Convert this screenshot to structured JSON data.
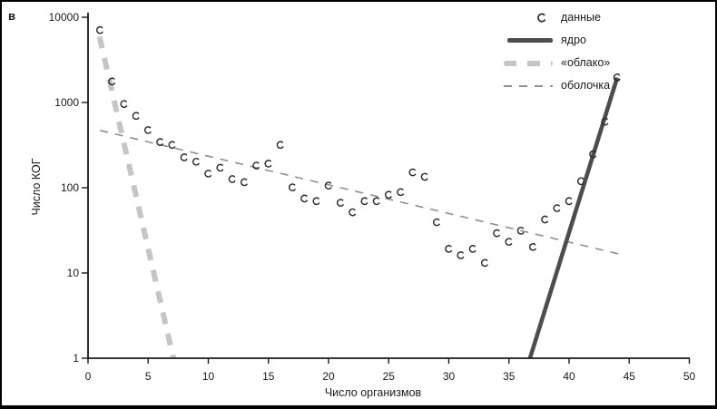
{
  "panel_label": "в",
  "colors": {
    "marker": "#2b2b2b",
    "core": "#4d4d4d",
    "cloud": "#c5c5c5",
    "shell": "#8f8f8f",
    "axis": "#1a1a1a",
    "text": "#1a1a1a",
    "frame": "#000000"
  },
  "legend": {
    "position": "top-right",
    "items": [
      {
        "key": "data",
        "label": "данные",
        "sample": "hooked-c-marker"
      },
      {
        "key": "core",
        "label": "ядро",
        "sample": "thick-solid-line"
      },
      {
        "key": "cloud",
        "label": "«облако»",
        "sample": "thick-dashed-line"
      },
      {
        "key": "shell",
        "label": "оболочка",
        "sample": "thin-dashed-line"
      }
    ]
  },
  "chart_data": {
    "type": "scatter",
    "title": "",
    "xlabel": "Число организмов",
    "ylabel": "Число КОГ",
    "grid": false,
    "x_axis": {
      "scale": "linear",
      "min": 0,
      "max": 50,
      "ticks": [
        0,
        5,
        10,
        15,
        20,
        25,
        30,
        35,
        40,
        45,
        50
      ]
    },
    "y_axis": {
      "scale": "log",
      "min": 1,
      "max": 10000,
      "ticks": [
        1,
        10,
        100,
        1000,
        10000
      ]
    },
    "series": [
      {
        "name": "данные",
        "key": "data",
        "type": "scatter",
        "marker": "hooked-c",
        "color": "#2b2b2b",
        "points": [
          [
            1,
            7000
          ],
          [
            2,
            1750
          ],
          [
            3,
            950
          ],
          [
            4,
            690
          ],
          [
            5,
            470
          ],
          [
            6,
            340
          ],
          [
            7,
            315
          ],
          [
            8,
            225
          ],
          [
            9,
            200
          ],
          [
            10,
            145
          ],
          [
            11,
            170
          ],
          [
            12,
            125
          ],
          [
            13,
            115
          ],
          [
            14,
            180
          ],
          [
            15,
            190
          ],
          [
            16,
            315
          ],
          [
            17,
            100
          ],
          [
            18,
            74
          ],
          [
            19,
            69
          ],
          [
            20,
            105
          ],
          [
            21,
            66
          ],
          [
            22,
            51
          ],
          [
            23,
            69
          ],
          [
            24,
            69
          ],
          [
            25,
            82
          ],
          [
            26,
            88
          ],
          [
            27,
            150
          ],
          [
            28,
            133
          ],
          [
            29,
            39
          ],
          [
            30,
            19
          ],
          [
            31,
            16
          ],
          [
            32,
            19
          ],
          [
            33,
            13
          ],
          [
            34,
            29
          ],
          [
            35,
            23
          ],
          [
            36,
            31
          ],
          [
            37,
            20
          ],
          [
            38,
            42
          ],
          [
            39,
            57
          ],
          [
            40,
            69
          ],
          [
            41,
            118
          ],
          [
            42,
            245
          ],
          [
            43,
            590
          ],
          [
            44,
            1950
          ]
        ]
      },
      {
        "name": "ядро",
        "key": "core",
        "type": "line",
        "style": "solid",
        "color": "#4d4d4d",
        "stroke_width": 4.6,
        "points": [
          [
            36.75,
            1
          ],
          [
            44,
            1950
          ]
        ]
      },
      {
        "name": "«облако»",
        "key": "cloud",
        "type": "line",
        "style": "dashed-thick",
        "color": "#c5c5c5",
        "stroke_width": 6,
        "points": [
          [
            0.95,
            5900
          ],
          [
            7.1,
            1
          ]
        ]
      },
      {
        "name": "оболочка",
        "key": "shell",
        "type": "line",
        "style": "dashed-thin",
        "color": "#8f8f8f",
        "stroke_width": 1.6,
        "points": [
          [
            1.0,
            470
          ],
          [
            44.3,
            16.5
          ]
        ]
      }
    ]
  }
}
